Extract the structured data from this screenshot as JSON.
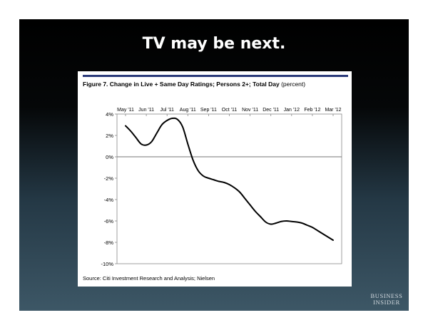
{
  "slide": {
    "title": "TV may be next.",
    "brand_line1": "BUSINESS",
    "brand_line2": "INSIDER"
  },
  "figure": {
    "caption_bold": "Figure 7. Change in Live + Same Day Ratings; Persons 2+; Total Day",
    "caption_unit": "(percent)",
    "source": "Source: Citi Investment Research and Analysis; Nielsen"
  },
  "chart_data": {
    "type": "line",
    "title": "Figure 7. Change in Live + Same Day Ratings; Persons 2+; Total Day (percent)",
    "xlabel": "",
    "ylabel": "",
    "categories": [
      "May '11",
      "Jun '11",
      "Jul '11",
      "Aug '11",
      "Sep '11",
      "Oct '11",
      "Nov '11",
      "Dec '11",
      "Jan '12",
      "Feb '12",
      "Mar '12"
    ],
    "ylim": [
      -10,
      4
    ],
    "yticks": [
      4,
      2,
      0,
      -2,
      -4,
      -6,
      -8,
      -10
    ],
    "ytick_labels": [
      "4%",
      "2%",
      "0%",
      "-2%",
      "-4%",
      "-6%",
      "-8%",
      "-10%"
    ],
    "x_axis_position": "top",
    "zero_line": true,
    "grid": false,
    "line_color": "#000000",
    "series": [
      {
        "x": [
          0,
          0.25,
          0.5,
          0.75,
          1.0,
          1.25,
          1.5,
          1.75,
          2.0,
          2.25,
          2.5,
          2.75,
          3.0,
          3.25,
          3.5,
          3.75,
          4.0,
          4.25,
          4.5,
          4.75,
          5.0,
          5.25,
          5.5,
          5.75,
          6.0,
          6.25,
          6.5,
          6.75,
          7.0,
          7.25,
          7.5,
          7.75,
          8.0,
          8.25,
          8.5,
          8.75,
          9.0,
          9.25,
          9.5,
          9.75,
          10.0
        ],
        "values": [
          2.9,
          2.4,
          1.8,
          1.2,
          1.1,
          1.4,
          2.2,
          3.0,
          3.4,
          3.6,
          3.5,
          2.8,
          1.2,
          -0.3,
          -1.3,
          -1.8,
          -2.0,
          -2.15,
          -2.3,
          -2.4,
          -2.6,
          -2.9,
          -3.3,
          -3.9,
          -4.5,
          -5.1,
          -5.6,
          -6.1,
          -6.3,
          -6.2,
          -6.05,
          -6.0,
          -6.05,
          -6.1,
          -6.2,
          -6.4,
          -6.6,
          -6.9,
          -7.2,
          -7.5,
          -7.8
        ]
      }
    ]
  }
}
